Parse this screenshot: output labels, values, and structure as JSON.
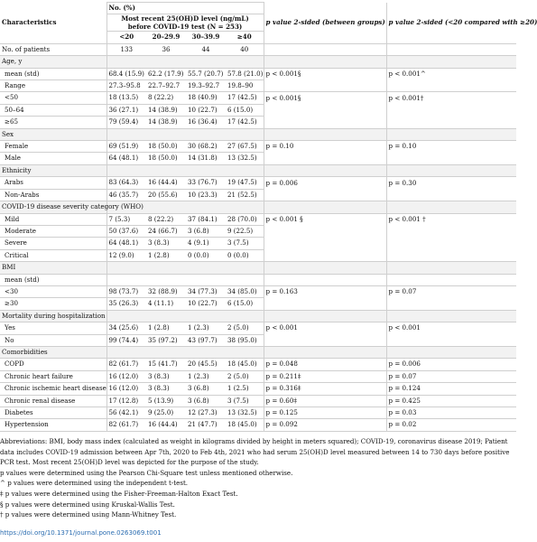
{
  "header": {
    "no_pct": "No. (%)",
    "characteristics": "Characteristics",
    "most_recent": "Most recent 25(OH)D level (ng/mL) before COVID-19 test (N = 253)",
    "p_between": "p value 2-sided (between groups)",
    "p_compared": "p value 2-sided (<20 compared with ≥20)",
    "groups": [
      "<20",
      "20–29.9",
      "30–39.9",
      "≥40"
    ],
    "patients_label": "No. of patients",
    "patients": [
      "133",
      "36",
      "44",
      "40"
    ]
  },
  "sections": [
    {
      "title": "Age, y",
      "rows": [
        {
          "label": "mean (std)",
          "v": [
            "68.4 (15.9)",
            "62.2 (17.9)",
            "55.7 (20.7)",
            "57.8 (21.0)"
          ],
          "p1": "p < 0.001§",
          "p2": "p < 0.001^"
        },
        {
          "label": "Range",
          "v": [
            "27.3–95.8",
            "22.7–92.7",
            "19.3–92.7",
            "19.8–90"
          ],
          "p1": "",
          "p2": ""
        },
        {
          "label": "<50",
          "v": [
            "18 (13.5)",
            "8 (22.2)",
            "18 (40.9)",
            "17 (42.5)"
          ],
          "p1": "p < 0.001§",
          "p2": "p < 0.001†"
        },
        {
          "label": "50–64",
          "v": [
            "36 (27.1)",
            "14 (38.9)",
            "10 (22.7)",
            "6 (15.0)"
          ],
          "p1": "",
          "p2": ""
        },
        {
          "label": "≥65",
          "v": [
            "79 (59.4)",
            "14 (38.9)",
            "16 (36.4)",
            "17 (42.5)"
          ],
          "p1": "",
          "p2": ""
        }
      ]
    },
    {
      "title": "Sex",
      "rows": [
        {
          "label": "Female",
          "v": [
            "69 (51.9)",
            "18 (50.0)",
            "30 (68.2)",
            "27 (67.5)"
          ],
          "p1": "p = 0.10",
          "p2": "p = 0.10"
        },
        {
          "label": "Male",
          "v": [
            "64 (48.1)",
            "18 (50.0)",
            "14 (31.8)",
            "13 (32.5)"
          ],
          "p1": "",
          "p2": ""
        }
      ]
    },
    {
      "title": "Ethnicity",
      "rows": [
        {
          "label": "Arabs",
          "v": [
            "83 (64.3)",
            "16 (44.4)",
            "33 (76.7)",
            "19 (47.5)"
          ],
          "p1": "p = 0.006",
          "p2": "p = 0.30"
        },
        {
          "label": "Non-Arabs",
          "v": [
            "46 (35.7)",
            "20 (55.6)",
            "10 (23.3)",
            "21 (52.5)"
          ],
          "p1": "",
          "p2": ""
        }
      ]
    },
    {
      "title": "COVID-19 disease severity category (WHO)",
      "rows": [
        {
          "label": "Mild",
          "v": [
            "7 (5.3)",
            "8 (22.2)",
            "37 (84.1)",
            "28 (70.0)"
          ],
          "p1": "p < 0.001 §",
          "p2": "p < 0.001 †"
        },
        {
          "label": "Moderate",
          "v": [
            "50 (37.6)",
            "24 (66.7)",
            "3 (6.8)",
            "9 (22.5)"
          ],
          "p1": "",
          "p2": ""
        },
        {
          "label": "Severe",
          "v": [
            "64 (48.1)",
            "3 (8.3)",
            "4 (9.1)",
            "3 (7.5)"
          ],
          "p1": "",
          "p2": ""
        },
        {
          "label": "Critical",
          "v": [
            "12 (9.0)",
            "1 (2.8)",
            "0 (0.0)",
            "0 (0.0)"
          ],
          "p1": "",
          "p2": ""
        }
      ]
    },
    {
      "title": "BMI",
      "rows": [
        {
          "label": "mean (std)",
          "v": [
            "",
            "",
            "",
            ""
          ],
          "p1": "",
          "p2": ""
        },
        {
          "label": "<30",
          "v": [
            "98 (73.7)",
            "32 (88.9)",
            "34 (77.3)",
            "34 (85.0)"
          ],
          "p1": "p = 0.163",
          "p2": "p = 0.07"
        },
        {
          "label": "≥30",
          "v": [
            "35 (26.3)",
            "4 (11.1)",
            "10 (22.7)",
            "6 (15.0)"
          ],
          "p1": "",
          "p2": ""
        }
      ]
    },
    {
      "title": "Mortality during hospitalization",
      "rows": [
        {
          "label": "Yes",
          "v": [
            "34 (25.6)",
            "1 (2.8)",
            "1 (2.3)",
            "2 (5.0)"
          ],
          "p1": "p < 0.001",
          "p2": "p < 0.001"
        },
        {
          "label": "No",
          "v": [
            "99 (74.4)",
            "35 (97.2)",
            "43 (97.7)",
            "38 (95.0)"
          ],
          "p1": "",
          "p2": ""
        }
      ]
    },
    {
      "title": "Comorbidities",
      "rows": [
        {
          "label": "COPD",
          "v": [
            "82 (61.7)",
            "15 (41.7)",
            "20 (45.5)",
            "18 (45.0)"
          ],
          "p1": "p = 0.048",
          "p2": "p = 0.006"
        },
        {
          "label": "Chronic heart failure",
          "v": [
            "16 (12.0)",
            "3 (8.3)",
            "1 (2.3)",
            "2 (5.0)"
          ],
          "p1": "p = 0.211‡",
          "p2": "p = 0.07"
        },
        {
          "label": "Chronic ischemic heart disease",
          "v": [
            "16 (12.0)",
            "3 (8.3)",
            "3 (6.8)",
            "1 (2.5)"
          ],
          "p1": "p = 0.316‡",
          "p2": "p = 0.124"
        },
        {
          "label": "Chronic renal disease",
          "v": [
            "17 (12.8)",
            "5 (13.9)",
            "3 (6.8)",
            "3 (7.5)"
          ],
          "p1": "p = 0.60‡",
          "p2": "p = 0.425"
        },
        {
          "label": "Diabetes",
          "v": [
            "56 (42.1)",
            "9 (25.0)",
            "12 (27.3)",
            "13 (32.5)"
          ],
          "p1": "p = 0.125",
          "p2": "p = 0.03"
        },
        {
          "label": "Hypertension",
          "v": [
            "82 (61.7)",
            "16 (44.4)",
            "21 (47.7)",
            "18 (45.0)"
          ],
          "p1": "p = 0.092",
          "p2": "p = 0.02"
        }
      ]
    }
  ],
  "footnotes": {
    "abbrev": "Abbreviations: BMI, body mass index (calculated as weight in kilograms divided by height in meters squared); COVID-19, coronavirus disease 2019; Patient data includes COVID-19 admission between Apr 7th, 2020 to Feb 4th, 2021 who had serum 25(OH)D level measured between 14 to 730 days before positive PCR test. Most recent 25(OH)D level was depicted for the purpose of the study.",
    "notes": [
      "p values were determined using the Pearson Chi-Square test unless mentioned otherwise.",
      "^ p values were determined using the independent t-test.",
      "‡ p values were determined using the Fisher-Freeman-Halton Exact Test.",
      "§ p values were determined using Kruskal-Wallis Test.",
      "† p values were determined using Mann-Whitney Test."
    ]
  },
  "doi": "https://doi.org/10.1371/journal.pone.0263069.t001"
}
